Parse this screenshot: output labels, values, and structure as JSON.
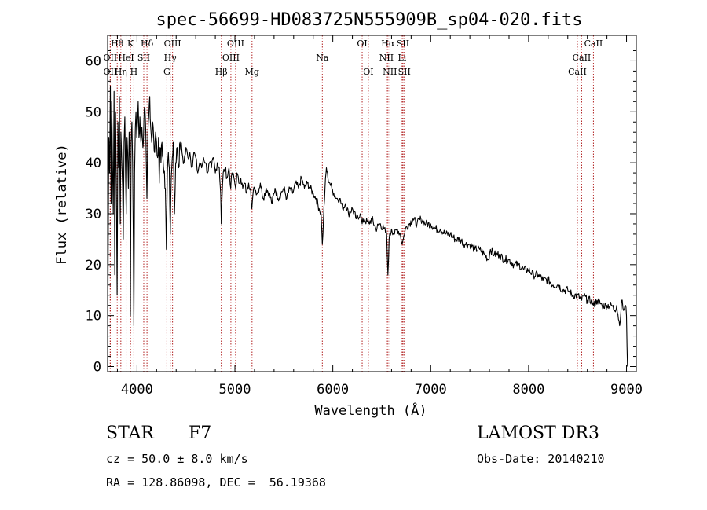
{
  "chart_data": {
    "type": "line",
    "title": "spec-56699-HD083725N555909B_sp04-020.fits",
    "xlabel": "Wavelength (Å)",
    "ylabel": "Flux (relative)",
    "xlim": [
      3700,
      9100
    ],
    "ylim": [
      -1,
      65
    ],
    "xticks": [
      4000,
      5000,
      6000,
      7000,
      8000,
      9000
    ],
    "yticks": [
      0,
      10,
      20,
      30,
      40,
      50,
      60
    ],
    "series": [
      {
        "name": "spectrum",
        "points": [
          [
            3700,
            0
          ],
          [
            3705,
            20
          ],
          [
            3712,
            45
          ],
          [
            3720,
            38
          ],
          [
            3728,
            55
          ],
          [
            3735,
            32
          ],
          [
            3742,
            52
          ],
          [
            3750,
            40
          ],
          [
            3758,
            30
          ],
          [
            3766,
            54
          ],
          [
            3773,
            18
          ],
          [
            3781,
            50
          ],
          [
            3789,
            36
          ],
          [
            3797,
            14
          ],
          [
            3805,
            48
          ],
          [
            3813,
            39
          ],
          [
            3820,
            53
          ],
          [
            3829,
            28
          ],
          [
            3836,
            46
          ],
          [
            3845,
            40
          ],
          [
            3853,
            35
          ],
          [
            3860,
            25
          ],
          [
            3868,
            44
          ],
          [
            3876,
            49
          ],
          [
            3884,
            37
          ],
          [
            3890,
            30
          ],
          [
            3898,
            45
          ],
          [
            3905,
            42
          ],
          [
            3912,
            35
          ],
          [
            3920,
            46
          ],
          [
            3926,
            41
          ],
          [
            3933,
            10
          ],
          [
            3940,
            44
          ],
          [
            3948,
            48
          ],
          [
            3955,
            40
          ],
          [
            3962,
            25
          ],
          [
            3968,
            8
          ],
          [
            3975,
            38
          ],
          [
            3983,
            47
          ],
          [
            3990,
            50
          ],
          [
            3998,
            45
          ],
          [
            4005,
            48
          ],
          [
            4012,
            52
          ],
          [
            4020,
            45
          ],
          [
            4030,
            49
          ],
          [
            4040,
            44
          ],
          [
            4050,
            47
          ],
          [
            4060,
            43
          ],
          [
            4070,
            48
          ],
          [
            4080,
            51
          ],
          [
            4090,
            46
          ],
          [
            4101,
            33
          ],
          [
            4110,
            45
          ],
          [
            4120,
            49
          ],
          [
            4130,
            53
          ],
          [
            4140,
            47
          ],
          [
            4150,
            44
          ],
          [
            4160,
            48
          ],
          [
            4170,
            45
          ],
          [
            4180,
            42
          ],
          [
            4190,
            46
          ],
          [
            4200,
            44
          ],
          [
            4210,
            41
          ],
          [
            4220,
            45
          ],
          [
            4227,
            36
          ],
          [
            4235,
            43
          ],
          [
            4245,
            40
          ],
          [
            4255,
            44
          ],
          [
            4265,
            41
          ],
          [
            4275,
            38
          ],
          [
            4290,
            35
          ],
          [
            4300,
            23
          ],
          [
            4310,
            38
          ],
          [
            4320,
            42
          ],
          [
            4330,
            39
          ],
          [
            4340,
            26
          ],
          [
            4350,
            37
          ],
          [
            4360,
            41
          ],
          [
            4370,
            44
          ],
          [
            4383,
            30
          ],
          [
            4395,
            40
          ],
          [
            4410,
            43
          ],
          [
            4425,
            39
          ],
          [
            4440,
            44
          ],
          [
            4460,
            42
          ],
          [
            4480,
            40
          ],
          [
            4500,
            43
          ],
          [
            4520,
            41
          ],
          [
            4540,
            42
          ],
          [
            4560,
            39
          ],
          [
            4580,
            42
          ],
          [
            4600,
            41
          ],
          [
            4620,
            38
          ],
          [
            4640,
            40
          ],
          [
            4660,
            39
          ],
          [
            4680,
            41
          ],
          [
            4700,
            40
          ],
          [
            4720,
            38
          ],
          [
            4740,
            40
          ],
          [
            4760,
            39
          ],
          [
            4780,
            41
          ],
          [
            4800,
            38
          ],
          [
            4820,
            40
          ],
          [
            4840,
            39
          ],
          [
            4855,
            34
          ],
          [
            4861,
            28
          ],
          [
            4868,
            33
          ],
          [
            4880,
            38
          ],
          [
            4900,
            39
          ],
          [
            4920,
            37
          ],
          [
            4940,
            39
          ],
          [
            4957,
            35
          ],
          [
            4970,
            38
          ],
          [
            4990,
            37
          ],
          [
            5007,
            35
          ],
          [
            5020,
            38
          ],
          [
            5040,
            36
          ],
          [
            5060,
            37
          ],
          [
            5080,
            35
          ],
          [
            5100,
            36
          ],
          [
            5120,
            34
          ],
          [
            5140,
            36
          ],
          [
            5160,
            35
          ],
          [
            5173,
            31
          ],
          [
            5185,
            34
          ],
          [
            5200,
            35
          ],
          [
            5230,
            34
          ],
          [
            5260,
            36
          ],
          [
            5290,
            33
          ],
          [
            5320,
            35
          ],
          [
            5350,
            34
          ],
          [
            5380,
            32
          ],
          [
            5410,
            35
          ],
          [
            5440,
            33
          ],
          [
            5470,
            34
          ],
          [
            5500,
            35
          ],
          [
            5530,
            33
          ],
          [
            5560,
            35
          ],
          [
            5590,
            34
          ],
          [
            5620,
            36
          ],
          [
            5650,
            35
          ],
          [
            5680,
            37
          ],
          [
            5710,
            35
          ],
          [
            5740,
            36
          ],
          [
            5770,
            35
          ],
          [
            5800,
            34
          ],
          [
            5830,
            33
          ],
          [
            5860,
            31
          ],
          [
            5880,
            30
          ],
          [
            5893,
            24
          ],
          [
            5905,
            29
          ],
          [
            5920,
            35
          ],
          [
            5935,
            39
          ],
          [
            5950,
            37
          ],
          [
            5970,
            36
          ],
          [
            5990,
            35
          ],
          [
            6010,
            34
          ],
          [
            6040,
            33
          ],
          [
            6070,
            33
          ],
          [
            6100,
            31
          ],
          [
            6130,
            32
          ],
          [
            6160,
            30
          ],
          [
            6200,
            31
          ],
          [
            6240,
            29
          ],
          [
            6280,
            30
          ],
          [
            6300,
            28
          ],
          [
            6320,
            29
          ],
          [
            6363,
            28
          ],
          [
            6400,
            29
          ],
          [
            6440,
            27
          ],
          [
            6480,
            28
          ],
          [
            6520,
            27
          ],
          [
            6550,
            26
          ],
          [
            6563,
            18
          ],
          [
            6575,
            25
          ],
          [
            6600,
            27
          ],
          [
            6630,
            26
          ],
          [
            6660,
            27
          ],
          [
            6690,
            26
          ],
          [
            6708,
            24
          ],
          [
            6720,
            25
          ],
          [
            6740,
            27
          ],
          [
            6780,
            28
          ],
          [
            6820,
            29
          ],
          [
            6860,
            28
          ],
          [
            6900,
            29
          ],
          [
            6950,
            28
          ],
          [
            7000,
            28
          ],
          [
            7050,
            27
          ],
          [
            7100,
            27
          ],
          [
            7150,
            26
          ],
          [
            7200,
            26
          ],
          [
            7250,
            25
          ],
          [
            7300,
            25
          ],
          [
            7350,
            24
          ],
          [
            7400,
            24
          ],
          [
            7450,
            23
          ],
          [
            7500,
            23
          ],
          [
            7550,
            22
          ],
          [
            7590,
            21
          ],
          [
            7610,
            23
          ],
          [
            7650,
            22
          ],
          [
            7700,
            22
          ],
          [
            7750,
            21
          ],
          [
            7800,
            21
          ],
          [
            7850,
            20
          ],
          [
            7900,
            20
          ],
          [
            7950,
            19
          ],
          [
            8000,
            19
          ],
          [
            8050,
            18
          ],
          [
            8100,
            18
          ],
          [
            8150,
            17
          ],
          [
            8200,
            17
          ],
          [
            8250,
            16
          ],
          [
            8300,
            16
          ],
          [
            8350,
            15
          ],
          [
            8400,
            15
          ],
          [
            8450,
            14
          ],
          [
            8500,
            14
          ],
          [
            8542,
            13
          ],
          [
            8560,
            14
          ],
          [
            8600,
            13
          ],
          [
            8640,
            13
          ],
          [
            8662,
            12
          ],
          [
            8700,
            13
          ],
          [
            8750,
            12
          ],
          [
            8800,
            12
          ],
          [
            8850,
            12
          ],
          [
            8880,
            11
          ],
          [
            8900,
            12
          ],
          [
            8930,
            8
          ],
          [
            8950,
            13
          ],
          [
            8970,
            11
          ],
          [
            8990,
            12
          ],
          [
            9000,
            10
          ],
          [
            9005,
            4
          ],
          [
            9010,
            0
          ]
        ]
      }
    ],
    "lines": [
      {
        "label": "Hθ",
        "x": 3798,
        "row": 0
      },
      {
        "label": "K",
        "x": 3934,
        "row": 0
      },
      {
        "label": "Hδ",
        "x": 4102,
        "row": 0
      },
      {
        "label": "OIII",
        "x": 4363,
        "row": 0
      },
      {
        "label": "OIII",
        "x": 5007,
        "row": 0
      },
      {
        "label": "OI",
        "x": 6300,
        "row": 0
      },
      {
        "label": "Hα",
        "x": 6563,
        "row": 0
      },
      {
        "label": "SII",
        "x": 6717,
        "row": 0
      },
      {
        "label": "CaII",
        "x": 8662,
        "row": 0
      },
      {
        "label": "OII",
        "x": 3727,
        "row": 1
      },
      {
        "label": "HeI",
        "x": 3889,
        "row": 1
      },
      {
        "label": "SII",
        "x": 4069,
        "row": 1
      },
      {
        "label": "Hγ",
        "x": 4340,
        "row": 1
      },
      {
        "label": "OIII",
        "x": 4959,
        "row": 1
      },
      {
        "label": "Na",
        "x": 5893,
        "row": 1
      },
      {
        "label": "NII",
        "x": 6548,
        "row": 1
      },
      {
        "label": "Li",
        "x": 6708,
        "row": 1
      },
      {
        "label": "CaII",
        "x": 8542,
        "row": 1
      },
      {
        "label": "OII",
        "x": 3727,
        "row": 2
      },
      {
        "label": "Hη",
        "x": 3835,
        "row": 2
      },
      {
        "label": "H",
        "x": 3968,
        "row": 2
      },
      {
        "label": "G",
        "x": 4305,
        "row": 2
      },
      {
        "label": "Hβ",
        "x": 4861,
        "row": 2
      },
      {
        "label": "Mg",
        "x": 5175,
        "row": 2
      },
      {
        "label": "OI",
        "x": 6363,
        "row": 2
      },
      {
        "label": "NII",
        "x": 6583,
        "row": 2
      },
      {
        "label": "SII",
        "x": 6731,
        "row": 2
      },
      {
        "label": "CaII",
        "x": 8498,
        "row": 2
      }
    ]
  },
  "info": {
    "class": "STAR",
    "subclass": "F7",
    "survey": "LAMOST DR3",
    "cz": "cz = 50.0 ± 8.0 km/s",
    "obs_date": "Obs-Date: 20140210",
    "coords": "RA = 128.86098, DEC =  56.19368"
  }
}
